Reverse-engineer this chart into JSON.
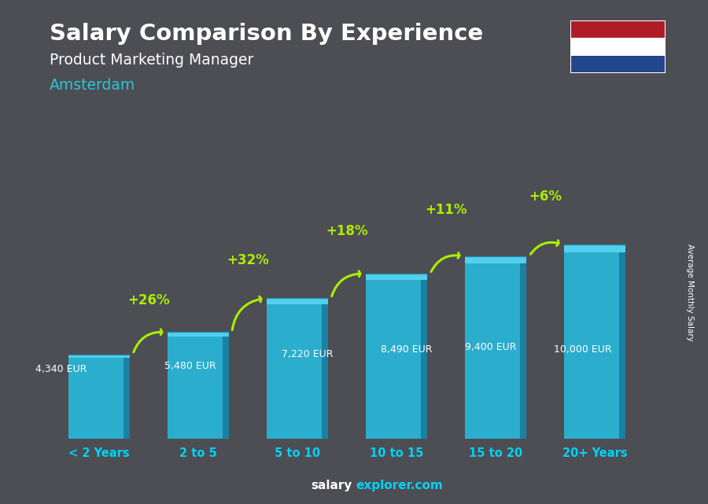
{
  "title": "Salary Comparison By Experience",
  "subtitle": "Product Marketing Manager",
  "city": "Amsterdam",
  "categories": [
    "< 2 Years",
    "2 to 5",
    "5 to 10",
    "10 to 15",
    "15 to 20",
    "20+ Years"
  ],
  "values": [
    4340,
    5480,
    7220,
    8490,
    9400,
    10000
  ],
  "bar_color_front": "#29b6d8",
  "bar_color_light": "#55d4f0",
  "bar_color_dark": "#1a7fa0",
  "bar_color_top": "#3ec8e8",
  "bar_color_top_dark": "#1a9abf",
  "salary_labels": [
    "4,340 EUR",
    "5,480 EUR",
    "7,220 EUR",
    "8,490 EUR",
    "9,400 EUR",
    "10,000 EUR"
  ],
  "pct_labels": [
    "+26%",
    "+32%",
    "+18%",
    "+11%",
    "+6%"
  ],
  "bg_color": "#4a4a52",
  "title_color": "#ffffff",
  "subtitle_color": "#ffffff",
  "city_color": "#29c5d4",
  "salary_label_color": "#ffffff",
  "pct_color": "#aaee00",
  "xtick_color": "#00d4f5",
  "footer_salary_color": "#ffffff",
  "footer_explorer_color": "#00d4f5",
  "ylabel": "Average Monthly Salary",
  "flag_red": "#AE1C28",
  "flag_white": "#FFFFFF",
  "flag_blue": "#21468B",
  "ylim_max": 13500,
  "bar_width": 0.62
}
